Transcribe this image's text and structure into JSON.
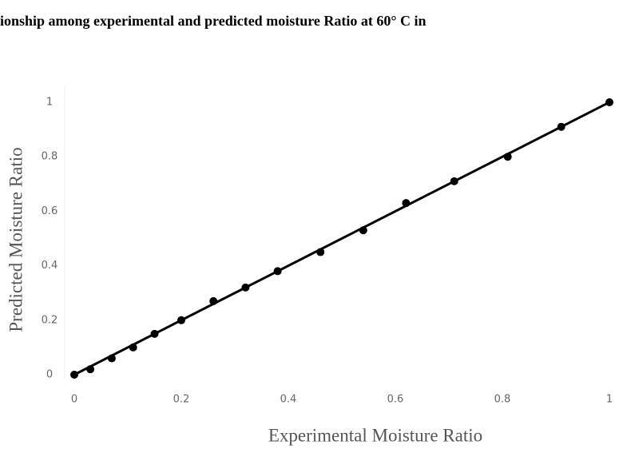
{
  "chart_data": {
    "type": "scatter",
    "title": "ionship among experimental and predicted moisture Ratio at 60° C in",
    "x_label": "Experimental Moisture Ratio",
    "y_label": "Predicted Moisture Ratio",
    "x": [
      0,
      0.03,
      0.07,
      0.11,
      0.15,
      0.2,
      0.26,
      0.32,
      0.38,
      0.46,
      0.54,
      0.62,
      0.71,
      0.81,
      0.91,
      1.0
    ],
    "values": [
      0.0,
      0.02,
      0.06,
      0.1,
      0.15,
      0.2,
      0.27,
      0.32,
      0.38,
      0.45,
      0.53,
      0.63,
      0.71,
      0.8,
      0.91,
      1.0
    ],
    "color": "#000000",
    "trendline": {
      "x": [
        0,
        1
      ],
      "values": [
        0,
        1
      ]
    },
    "xlim": [
      0,
      1
    ],
    "ylim": [
      0,
      1
    ],
    "xticks": [
      0,
      0.2,
      0.4,
      0.6,
      0.8,
      1
    ],
    "yticks": [
      0,
      0.2,
      0.4,
      0.6,
      0.8,
      1
    ]
  }
}
